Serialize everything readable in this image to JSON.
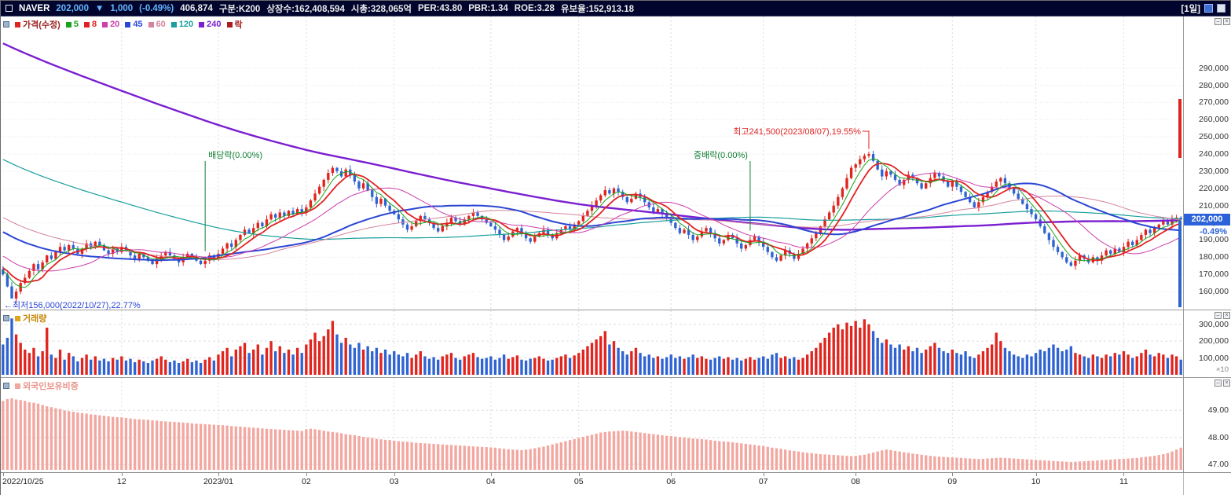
{
  "header": {
    "symbol": "NAVER",
    "price": "202,000",
    "change_arrow": "▼",
    "change": "1,000",
    "change_pct": "(-0.49%)",
    "price_color": "#64b5ff",
    "stats": [
      "406,874",
      "구분:K200",
      "상장수:162,408,594",
      "시총:328,065억",
      "PER:43.80",
      "PBR:1.34",
      "ROE:3.28",
      "유보율:152,913.18"
    ],
    "period": "[1일]"
  },
  "price_panel": {
    "legend_title": "가격(수정)",
    "title_color": "#9a1f1f",
    "title_square": "#e0241e",
    "legend_last": "락",
    "drop_color": "#a81e1e",
    "drop_square": "#a81e1e"
  },
  "volume_panel": {
    "legend": "거래량",
    "color": "#c8860a",
    "square": "#e0a51e"
  },
  "foreign_panel": {
    "legend": "외국인보유비중",
    "color": "#e8948a",
    "square": "#f0a89e"
  },
  "chart_data": {
    "type": "candlestick",
    "title": "NAVER",
    "legend": [
      "가격(수정)",
      "5",
      "8",
      "20",
      "45",
      "60",
      "120",
      "240",
      "락"
    ],
    "price_unit": 1000,
    "close": [
      170,
      163,
      156,
      160,
      165,
      168,
      172,
      176,
      173,
      177,
      181,
      179,
      183,
      186,
      184,
      187,
      185,
      182,
      185,
      188,
      186,
      189,
      187,
      184,
      182,
      185,
      183,
      186,
      184,
      181,
      179,
      182,
      180,
      178,
      176,
      179,
      181,
      183,
      181,
      179,
      177,
      180,
      182,
      180,
      178,
      176,
      178,
      181,
      179,
      182,
      185,
      188,
      186,
      190,
      193,
      196,
      194,
      197,
      200,
      198,
      202,
      205,
      203,
      206,
      204,
      207,
      205,
      208,
      206,
      209,
      213,
      217,
      221,
      225,
      229,
      232,
      230,
      227,
      231,
      228,
      224,
      220,
      223,
      219,
      215,
      211,
      214,
      210,
      207,
      205,
      202,
      199,
      196,
      198,
      201,
      204,
      202,
      200,
      197,
      195,
      198,
      200,
      203,
      201,
      199,
      202,
      204,
      206,
      204,
      202,
      200,
      198,
      196,
      193,
      190,
      192,
      195,
      197,
      194,
      191,
      189,
      192,
      194,
      196,
      193,
      191,
      194,
      196,
      198,
      196,
      199,
      201,
      204,
      207,
      210,
      213,
      216,
      219,
      217,
      220,
      218,
      215,
      212,
      214,
      217,
      215,
      212,
      209,
      206,
      208,
      205,
      203,
      200,
      197,
      194,
      196,
      193,
      190,
      192,
      195,
      197,
      194,
      191,
      188,
      190,
      193,
      191,
      188,
      185,
      187,
      190,
      192,
      189,
      186,
      183,
      180,
      178,
      181,
      184,
      182,
      179,
      182,
      185,
      188,
      191,
      194,
      198,
      202,
      206,
      210,
      215,
      220,
      226,
      232,
      234,
      237,
      239,
      240,
      236,
      231,
      227,
      230,
      228,
      225,
      222,
      225,
      228,
      226,
      223,
      220,
      223,
      226,
      229,
      227,
      224,
      221,
      224,
      221,
      218,
      215,
      212,
      209,
      212,
      215,
      218,
      221,
      224,
      226,
      223,
      220,
      217,
      214,
      211,
      208,
      205,
      202,
      198,
      194,
      190,
      186,
      183,
      180,
      177,
      175,
      178,
      181,
      179,
      177,
      180,
      178,
      181,
      184,
      182,
      185,
      183,
      186,
      189,
      187,
      190,
      193,
      196,
      194,
      197,
      199,
      201,
      199,
      202,
      203,
      202
    ],
    "volume_unit": 1000,
    "volume": [
      180,
      220,
      335,
      240,
      190,
      150,
      130,
      160,
      110,
      140,
      280,
      120,
      100,
      150,
      90,
      130,
      110,
      80,
      100,
      120,
      90,
      110,
      85,
      95,
      80,
      100,
      90,
      110,
      85,
      95,
      75,
      90,
      80,
      70,
      85,
      95,
      110,
      90,
      75,
      85,
      70,
      80,
      95,
      75,
      85,
      70,
      90,
      105,
      85,
      120,
      140,
      160,
      110,
      150,
      170,
      190,
      130,
      150,
      180,
      120,
      160,
      200,
      140,
      170,
      130,
      150,
      120,
      160,
      130,
      180,
      210,
      250,
      200,
      230,
      270,
      320,
      240,
      190,
      220,
      180,
      160,
      190,
      150,
      170,
      140,
      160,
      130,
      150,
      120,
      140,
      120,
      110,
      130,
      100,
      120,
      140,
      110,
      95,
      105,
      90,
      110,
      120,
      130,
      100,
      90,
      110,
      120,
      130,
      105,
      95,
      100,
      110,
      90,
      100,
      120,
      95,
      105,
      115,
      90,
      85,
      95,
      100,
      110,
      95,
      85,
      90,
      100,
      110,
      120,
      100,
      115,
      130,
      150,
      170,
      190,
      210,
      230,
      260,
      180,
      200,
      160,
      140,
      120,
      140,
      160,
      130,
      110,
      120,
      100,
      110,
      95,
      105,
      120,
      100,
      110,
      95,
      105,
      120,
      100,
      110,
      95,
      90,
      100,
      110,
      95,
      105,
      90,
      100,
      85,
      95,
      105,
      90,
      100,
      110,
      95,
      120,
      130,
      100,
      110,
      95,
      105,
      90,
      100,
      120,
      140,
      160,
      190,
      220,
      250,
      280,
      300,
      270,
      310,
      290,
      320,
      280,
      330,
      300,
      260,
      220,
      190,
      210,
      180,
      160,
      180,
      150,
      170,
      140,
      160,
      130,
      150,
      170,
      190,
      160,
      140,
      130,
      150,
      130,
      120,
      140,
      110,
      100,
      120,
      140,
      160,
      180,
      250,
      200,
      160,
      140,
      120,
      110,
      100,
      120,
      110,
      130,
      150,
      140,
      160,
      180,
      160,
      140,
      150,
      170,
      130,
      120,
      110,
      100,
      120,
      110,
      100,
      120,
      110,
      130,
      120,
      140,
      120,
      100,
      110,
      130,
      150,
      120,
      110,
      130,
      120,
      100,
      120,
      110,
      90
    ],
    "foreign_ownership_pct": [
      49.35,
      49.42,
      49.45,
      49.4,
      49.38,
      49.35,
      49.3,
      49.28,
      49.25,
      49.2,
      49.15,
      49.12,
      49.08,
      49.05,
      49.0,
      48.97,
      48.95,
      48.92,
      48.9,
      48.88,
      48.85,
      48.84,
      48.82,
      48.8,
      48.78,
      48.76,
      48.75,
      48.74,
      48.72,
      48.7,
      48.68,
      48.67,
      48.66,
      48.65,
      48.63,
      48.62,
      48.6,
      48.59,
      48.58,
      48.57,
      48.56,
      48.55,
      48.54,
      48.52,
      48.51,
      48.5,
      48.49,
      48.48,
      48.47,
      48.46,
      48.45,
      48.44,
      48.42,
      48.41,
      48.4,
      48.38,
      48.37,
      48.36,
      48.35,
      48.33,
      48.32,
      48.31,
      48.3,
      48.29,
      48.28,
      48.27,
      48.26,
      48.25,
      48.24,
      48.3,
      48.32,
      48.3,
      48.28,
      48.25,
      48.22,
      48.2,
      48.18,
      48.15,
      48.12,
      48.1,
      48.08,
      48.05,
      48.02,
      48.0,
      47.98,
      47.95,
      47.93,
      47.91,
      47.9,
      47.88,
      47.86,
      47.85,
      47.84,
      47.82,
      47.8,
      47.79,
      47.78,
      47.77,
      47.76,
      47.75,
      47.74,
      47.73,
      47.72,
      47.71,
      47.7,
      47.69,
      47.68,
      47.67,
      47.66,
      47.65,
      47.64,
      47.63,
      47.62,
      47.6,
      47.58,
      47.56,
      47.55,
      47.54,
      47.53,
      47.55,
      47.57,
      47.6,
      47.63,
      47.66,
      47.7,
      47.74,
      47.78,
      47.82,
      47.86,
      47.9,
      47.94,
      47.98,
      48.02,
      48.06,
      48.1,
      48.14,
      48.18,
      48.2,
      48.22,
      48.23,
      48.24,
      48.25,
      48.24,
      48.22,
      48.2,
      48.18,
      48.16,
      48.14,
      48.12,
      48.1,
      48.08,
      48.06,
      48.05,
      48.03,
      48.01,
      48.0,
      47.98,
      47.96,
      47.95,
      47.94,
      47.92,
      47.9,
      47.88,
      47.86,
      47.85,
      47.84,
      47.82,
      47.8,
      47.78,
      47.76,
      47.74,
      47.72,
      47.7,
      47.68,
      47.65,
      47.62,
      47.6,
      47.58,
      47.55,
      47.52,
      47.5,
      47.48,
      47.45,
      47.43,
      47.42,
      47.4,
      47.38,
      47.37,
      47.36,
      47.35,
      47.34,
      47.33,
      47.32,
      47.31,
      47.32,
      47.34,
      47.36,
      47.4,
      47.44,
      47.48,
      47.52,
      47.55,
      47.53,
      47.5,
      47.48,
      47.45,
      47.43,
      47.4,
      47.38,
      47.36,
      47.34,
      47.32,
      47.3,
      47.29,
      47.28,
      47.27,
      47.26,
      47.25,
      47.24,
      47.23,
      47.22,
      47.21,
      47.2,
      47.21,
      47.22,
      47.23,
      47.24,
      47.25,
      47.24,
      47.23,
      47.22,
      47.21,
      47.2,
      47.19,
      47.18,
      47.17,
      47.16,
      47.15,
      47.14,
      47.13,
      47.12,
      47.11,
      47.1,
      47.09,
      47.1,
      47.11,
      47.12,
      47.13,
      47.14,
      47.15,
      47.16,
      47.17,
      47.18,
      47.19,
      47.2,
      47.21,
      47.22,
      47.23,
      47.24,
      47.26,
      47.28,
      47.3,
      47.32,
      47.35,
      47.38,
      47.42,
      47.48,
      47.55,
      47.62
    ],
    "high_point": {
      "index": 197,
      "price": 241500,
      "label": "최고241,500(2023/08/07),19.55%",
      "color": "#e02222"
    },
    "low_point": {
      "index": 2,
      "price": 156000,
      "label": "←최저156,000(2022/10/27),22.77%",
      "color": "#2b46d4"
    },
    "events": [
      {
        "label": "배당락(0.00%)",
        "index": 46,
        "side": "right",
        "color": "#0e7d32"
      },
      {
        "label": "중배락(0.00%)",
        "index": 170,
        "side": "left",
        "color": "#0e7d32"
      }
    ],
    "moving_averages": {
      "windows": [
        5,
        8,
        20,
        45,
        60,
        120,
        240
      ],
      "colors": [
        "#18a318",
        "#e02222",
        "#cc3fae",
        "#2b46d4",
        "#d4849c",
        "#1a9e9e",
        "#7a1fd0"
      ],
      "widths": [
        1,
        1.8,
        1,
        2,
        1,
        1.2,
        2.4
      ]
    },
    "pre_history": {
      "start": 440000,
      "end": 171000,
      "count": 240
    },
    "candle_colors": {
      "up": "#e0241e",
      "down": "#2f63d2"
    },
    "foreign_color": "#f2a7a0",
    "price_axis": {
      "min": 150000,
      "max": 320000,
      "labels": [
        "290,000",
        "280,000",
        "270,000",
        "260,000",
        "250,000",
        "240,000",
        "230,000",
        "220,000",
        "210,000",
        "200,000",
        "190,000",
        "180,000",
        "170,000",
        "160,000"
      ]
    },
    "volume_axis": {
      "max": 355000,
      "labels": [
        "300,000",
        "200,000",
        "100,000"
      ],
      "multiplier": "×10"
    },
    "foreign_axis": {
      "min": 46.8,
      "max": 50.2,
      "labels": [
        "49.00",
        "48.00",
        "47.00"
      ]
    },
    "current": {
      "price": 202000,
      "price_tag": "202,000",
      "pct_tag": "-0.49%"
    },
    "month_ticks": [
      {
        "label": "2022/10/25",
        "index": 0
      },
      {
        "label": "12",
        "index": 27
      },
      {
        "label": "2023/01",
        "index": 49
      },
      {
        "label": "02",
        "index": 69
      },
      {
        "label": "03",
        "index": 89
      },
      {
        "label": "04",
        "index": 111
      },
      {
        "label": "05",
        "index": 131
      },
      {
        "label": "06",
        "index": 152
      },
      {
        "label": "07",
        "index": 173
      },
      {
        "label": "08",
        "index": 194
      },
      {
        "label": "09",
        "index": 216
      },
      {
        "label": "10",
        "index": 235
      },
      {
        "label": "11",
        "index": 255
      }
    ]
  }
}
